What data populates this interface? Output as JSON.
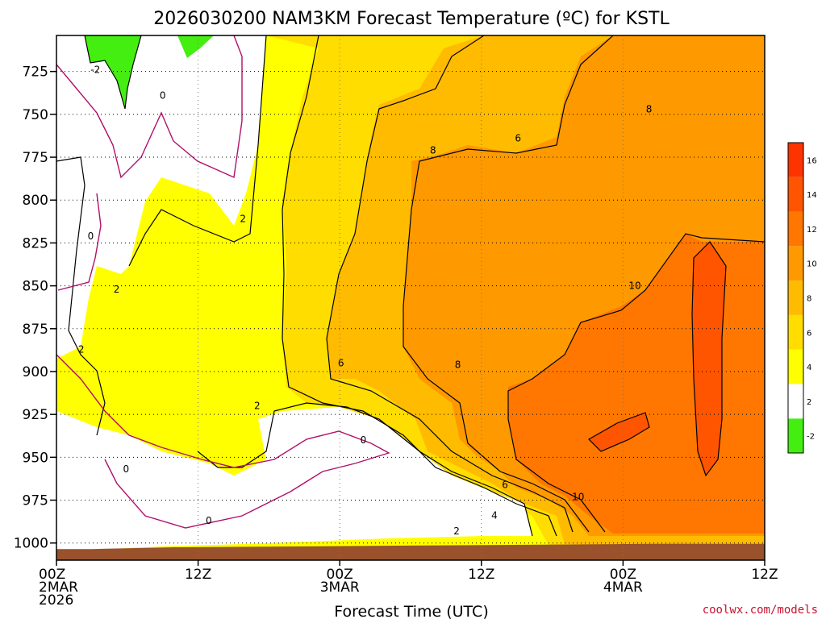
{
  "chart_data": {
    "type": "heatmap",
    "title": "2026030200 NAM3KM Forecast Temperature (ºC) for KSTL",
    "xlabel": "Forecast Time (UTC)",
    "ylabel": "",
    "x_ticks": [
      {
        "hour": 0,
        "lines": [
          "00Z",
          "2MAR",
          "2026"
        ]
      },
      {
        "hour": 12,
        "lines": [
          "12Z"
        ]
      },
      {
        "hour": 24,
        "lines": [
          "00Z",
          "3MAR"
        ]
      },
      {
        "hour": 36,
        "lines": [
          "12Z"
        ]
      },
      {
        "hour": 48,
        "lines": [
          "00Z",
          "4MAR"
        ]
      },
      {
        "hour": 60,
        "lines": [
          "12Z"
        ]
      }
    ],
    "xlim": [
      0,
      60
    ],
    "y_ticks": [
      725,
      750,
      775,
      800,
      825,
      850,
      875,
      900,
      925,
      950,
      975,
      1000
    ],
    "ylim": [
      704,
      1010
    ],
    "ground_pressure_hpa": [
      1003.5,
      1003.5,
      1002.5,
      1002,
      1001.5,
      1001,
      1000.5,
      1000.5
    ],
    "ground_hours": [
      0,
      3,
      10,
      20,
      30,
      40,
      50,
      60
    ],
    "colorbar": {
      "levels": [
        -2,
        2,
        4,
        6,
        8,
        10,
        12,
        14,
        16
      ],
      "tick_labels": [
        "-2",
        "2",
        "4",
        "6",
        "8",
        "10",
        "12",
        "14",
        "16"
      ],
      "colors": [
        "#44ee11",
        "#ffffff",
        "#ffff00",
        "#ffdd00",
        "#ffbb00",
        "#ff9900",
        "#ff7700",
        "#ff5500",
        "#ff3300"
      ]
    },
    "temperature_summary": [
      {
        "hour": 0,
        "temps_by_level": {
          "725": 0,
          "800": 1,
          "900": 2,
          "975": 3
        }
      },
      {
        "hour": 12,
        "temps_by_level": {
          "725": 1,
          "800": 2,
          "900": 3,
          "950": 1,
          "990": -0.5
        }
      },
      {
        "hour": 24,
        "temps_by_level": {
          "725": 4,
          "800": 5,
          "900": 6,
          "950": 0.5,
          "990": 1.5
        }
      },
      {
        "hour": 36,
        "temps_by_level": {
          "725": 5,
          "800": 8,
          "900": 9,
          "975": 5
        }
      },
      {
        "hour": 48,
        "temps_by_level": {
          "725": 8,
          "800": 10,
          "900": 12,
          "975": 9
        }
      },
      {
        "hour": 60,
        "temps_by_level": {
          "725": 8,
          "800": 11,
          "900": 12,
          "975": 11
        }
      }
    ],
    "contour_labels": [
      {
        "text": "-2",
        "hour": 3.3,
        "p": 724
      },
      {
        "text": "0",
        "hour": 9.0,
        "p": 739
      },
      {
        "text": "2",
        "hour": 15.8,
        "p": 811
      },
      {
        "text": "0",
        "hour": 2.9,
        "p": 821
      },
      {
        "text": "2",
        "hour": 5.1,
        "p": 852
      },
      {
        "text": "2",
        "hour": 2.1,
        "p": 887
      },
      {
        "text": "2",
        "hour": 17.0,
        "p": 920
      },
      {
        "text": "0",
        "hour": 5.9,
        "p": 957
      },
      {
        "text": "0",
        "hour": 12.9,
        "p": 987
      },
      {
        "text": "0",
        "hour": 26.0,
        "p": 940
      },
      {
        "text": "6",
        "hour": 24.1,
        "p": 895
      },
      {
        "text": "8",
        "hour": 31.9,
        "p": 771
      },
      {
        "text": "6",
        "hour": 39.1,
        "p": 764
      },
      {
        "text": "8",
        "hour": 34.0,
        "p": 896
      },
      {
        "text": "6",
        "hour": 38.0,
        "p": 966
      },
      {
        "text": "4",
        "hour": 37.1,
        "p": 984
      },
      {
        "text": "2",
        "hour": 33.9,
        "p": 993
      },
      {
        "text": "10",
        "hour": 44.2,
        "p": 973
      },
      {
        "text": "10",
        "hour": 49.0,
        "p": 850
      },
      {
        "text": "8",
        "hour": 50.2,
        "p": 747
      }
    ]
  },
  "credit": "coolwx.com/models"
}
